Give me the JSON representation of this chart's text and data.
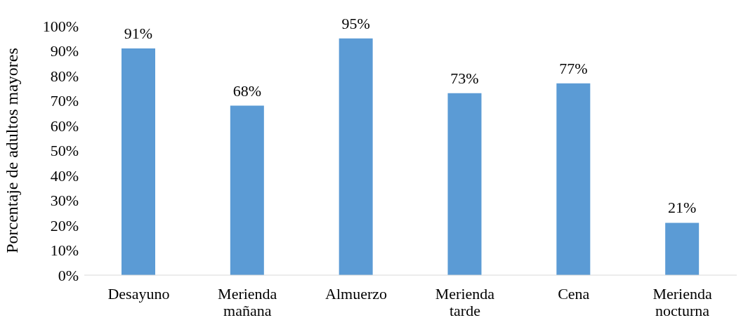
{
  "chart_data": {
    "type": "bar",
    "ylabel": "Porcentaje de adultos mayores",
    "categories": [
      "Desayuno",
      "Merienda mañana",
      "Almuerzo",
      "Merienda tarde",
      "Cena",
      "Merienda nocturna"
    ],
    "values": [
      91,
      68,
      95,
      73,
      77,
      21
    ],
    "value_labels": [
      "91%",
      "68%",
      "95%",
      "73%",
      "77%",
      "21%"
    ],
    "color": "#5b9bd5",
    "ylim": [
      0,
      100
    ],
    "yticks": [
      {
        "value": 0,
        "label": "0%"
      },
      {
        "value": 10,
        "label": "10%"
      },
      {
        "value": 20,
        "label": "20%"
      },
      {
        "value": 30,
        "label": "30%"
      },
      {
        "value": 40,
        "label": "40%"
      },
      {
        "value": 50,
        "label": "50%"
      },
      {
        "value": 60,
        "label": "60%"
      },
      {
        "value": 70,
        "label": "70%"
      },
      {
        "value": 80,
        "label": "80%"
      },
      {
        "value": 90,
        "label": "90%"
      },
      {
        "value": 100,
        "label": "100%"
      }
    ],
    "grid": false,
    "legend": false
  }
}
